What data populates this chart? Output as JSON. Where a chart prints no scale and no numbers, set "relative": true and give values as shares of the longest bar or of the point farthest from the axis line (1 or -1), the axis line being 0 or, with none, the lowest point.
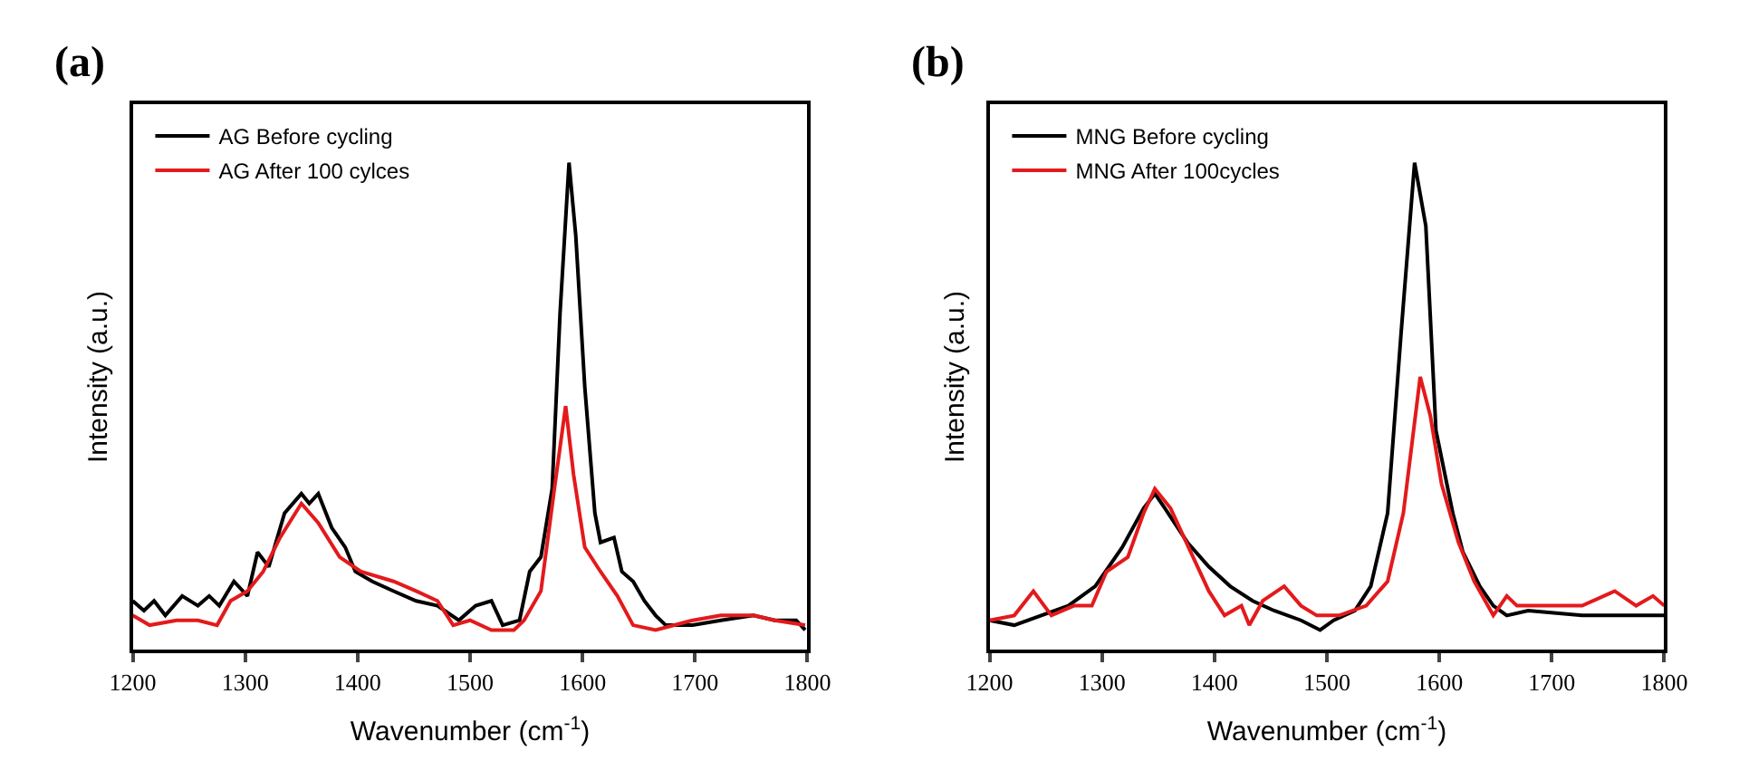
{
  "chart_data": [
    {
      "type": "line",
      "title": "(a)",
      "xlabel": "Wavenumber (cm$^{-1}$)",
      "ylabel": "Intensity (a.u.)",
      "relative": true,
      "xlim": [
        1200,
        1800
      ],
      "xticks": [
        1200,
        1300,
        1400,
        1500,
        1600,
        1700,
        1800
      ],
      "tick_labels": "x",
      "legend": "top left",
      "series": [
        {
          "name": "AG Before cycling",
          "color": "#000000",
          "x": [
            1200,
            1210,
            1219,
            1229,
            1244,
            1258,
            1268,
            1277,
            1290,
            1302,
            1311,
            1321,
            1335,
            1350,
            1357,
            1365,
            1377,
            1389,
            1398,
            1413,
            1432,
            1452,
            1471,
            1490,
            1505,
            1519,
            1529,
            1544,
            1553,
            1563,
            1573,
            1580,
            1588,
            1594,
            1602,
            1611,
            1616,
            1628,
            1635,
            1645,
            1655,
            1665,
            1674,
            1698,
            1723,
            1752,
            1771,
            1790,
            1798
          ],
          "values": [
            0.1,
            0.08,
            0.1,
            0.07,
            0.11,
            0.09,
            0.11,
            0.09,
            0.14,
            0.11,
            0.2,
            0.17,
            0.28,
            0.32,
            0.3,
            0.32,
            0.25,
            0.21,
            0.16,
            0.14,
            0.12,
            0.1,
            0.09,
            0.06,
            0.09,
            0.1,
            0.05,
            0.06,
            0.16,
            0.19,
            0.33,
            0.69,
            1.0,
            0.85,
            0.54,
            0.28,
            0.22,
            0.23,
            0.16,
            0.14,
            0.1,
            0.07,
            0.05,
            0.05,
            0.06,
            0.07,
            0.06,
            0.06,
            0.04
          ]
        },
        {
          "name": "AG After 100 cylces",
          "color": "#e31a1c",
          "x": [
            1200,
            1215,
            1239,
            1258,
            1275,
            1287,
            1302,
            1316,
            1331,
            1350,
            1365,
            1384,
            1403,
            1432,
            1452,
            1471,
            1485,
            1500,
            1519,
            1539,
            1548,
            1563,
            1575,
            1585,
            1592,
            1602,
            1616,
            1631,
            1645,
            1665,
            1698,
            1723,
            1752,
            1771,
            1798
          ],
          "values": [
            0.07,
            0.05,
            0.06,
            0.06,
            0.05,
            0.1,
            0.12,
            0.16,
            0.23,
            0.3,
            0.26,
            0.19,
            0.16,
            0.14,
            0.12,
            0.1,
            0.05,
            0.06,
            0.04,
            0.04,
            0.06,
            0.12,
            0.33,
            0.5,
            0.36,
            0.21,
            0.16,
            0.11,
            0.05,
            0.04,
            0.06,
            0.07,
            0.07,
            0.06,
            0.05
          ]
        }
      ]
    },
    {
      "type": "line",
      "title": "(b)",
      "xlabel": "Wavenumber (cm$^{-1}$)",
      "ylabel": "Intensity (a.u.)",
      "relative": true,
      "xlim": [
        1200,
        1800
      ],
      "xticks": [
        1200,
        1300,
        1400,
        1500,
        1600,
        1700,
        1800
      ],
      "tick_labels": "x",
      "legend": "top left",
      "series": [
        {
          "name": "MNG Before cycling",
          "color": "#000000",
          "x": [
            1200,
            1222,
            1246,
            1270,
            1294,
            1318,
            1337,
            1347,
            1356,
            1376,
            1395,
            1414,
            1434,
            1453,
            1477,
            1494,
            1506,
            1525,
            1539,
            1554,
            1566,
            1578,
            1588,
            1597,
            1612,
            1621,
            1636,
            1648,
            1660,
            1679,
            1727,
            1775,
            1800
          ],
          "values": [
            0.06,
            0.05,
            0.07,
            0.09,
            0.13,
            0.21,
            0.29,
            0.32,
            0.29,
            0.22,
            0.17,
            0.13,
            0.1,
            0.08,
            0.06,
            0.04,
            0.06,
            0.08,
            0.13,
            0.28,
            0.65,
            1.0,
            0.87,
            0.45,
            0.28,
            0.2,
            0.13,
            0.09,
            0.07,
            0.08,
            0.07,
            0.07,
            0.07
          ]
        },
        {
          "name": "MNG After 100cycles",
          "color": "#e31a1c",
          "x": [
            1200,
            1222,
            1239,
            1255,
            1275,
            1291,
            1304,
            1323,
            1337,
            1347,
            1361,
            1381,
            1395,
            1409,
            1424,
            1431,
            1443,
            1462,
            1477,
            1491,
            1511,
            1535,
            1554,
            1568,
            1583,
            1592,
            1602,
            1617,
            1631,
            1648,
            1660,
            1669,
            1698,
            1727,
            1756,
            1775,
            1790,
            1800
          ],
          "values": [
            0.06,
            0.07,
            0.12,
            0.07,
            0.09,
            0.09,
            0.16,
            0.19,
            0.28,
            0.33,
            0.29,
            0.19,
            0.12,
            0.07,
            0.09,
            0.05,
            0.1,
            0.13,
            0.09,
            0.07,
            0.07,
            0.09,
            0.14,
            0.28,
            0.56,
            0.48,
            0.34,
            0.22,
            0.14,
            0.07,
            0.11,
            0.09,
            0.09,
            0.09,
            0.12,
            0.09,
            0.11,
            0.09
          ]
        }
      ]
    }
  ]
}
